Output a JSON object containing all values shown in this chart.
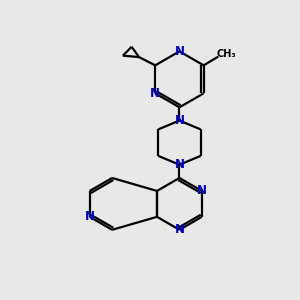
{
  "bg_color": "#e8e8e8",
  "bond_color": "#000000",
  "nitrogen_color": "#0000cc",
  "line_width": 1.6,
  "font_size": 8.5,
  "xlim": [
    0,
    10
  ],
  "ylim": [
    0,
    10
  ]
}
